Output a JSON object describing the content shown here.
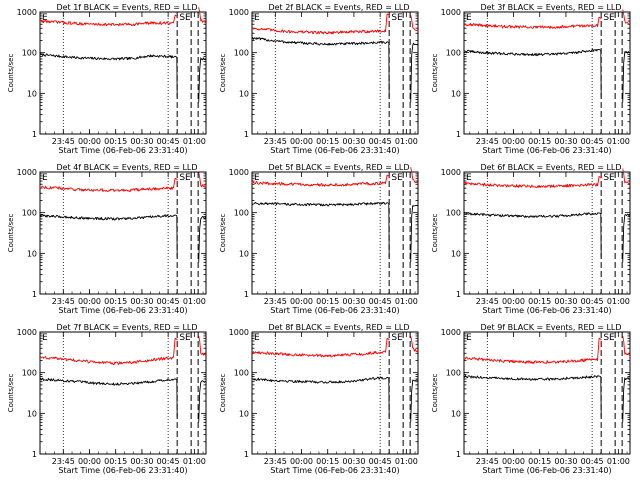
{
  "figure": {
    "x_axis_title": "Start Time (06-Feb-06 23:31:40)",
    "y_axis_title": "Counts/sec",
    "x_tick_labels": [
      "23:45",
      "00:00",
      "00:15",
      "00:30",
      "00:45",
      "01:00"
    ],
    "y_tick_labels": [
      "1",
      "10",
      "100",
      "1000"
    ],
    "marker_left": "E",
    "marker_right": "SE",
    "colors": {
      "events": "#000000",
      "lld": "#ff0000",
      "axes": "#000000"
    }
  },
  "chart_data": [
    {
      "type": "line",
      "title": "Det 1f BLACK = Events, RED = LLD",
      "xlabel": "Start Time (06-Feb-06 23:31:40)",
      "ylabel": "Counts/sec",
      "xlim_minutes_after_start": [
        0,
        95
      ],
      "ylim": [
        1,
        1000
      ],
      "yscale": "log",
      "series": [
        {
          "name": "Events",
          "color": "#000000",
          "level_profile": [
            90,
            82,
            75,
            72,
            70,
            72,
            84,
            80,
            72,
            75
          ]
        },
        {
          "name": "LLD",
          "color": "#ff0000",
          "level_profile": [
            600,
            560,
            520,
            500,
            490,
            500,
            540,
            530,
            500,
            520
          ]
        }
      ]
    },
    {
      "type": "line",
      "title": "Det 2f BLACK = Events, RED = LLD",
      "xlabel": "Start Time (06-Feb-06 23:31:40)",
      "ylabel": "Counts/sec",
      "xlim_minutes_after_start": [
        0,
        95
      ],
      "ylim": [
        1,
        1000
      ],
      "yscale": "log",
      "series": [
        {
          "name": "Events",
          "color": "#000000",
          "level_profile": [
            230,
            200,
            180,
            170,
            160,
            165,
            170,
            180,
            170,
            180
          ]
        },
        {
          "name": "LLD",
          "color": "#ff0000",
          "level_profile": [
            400,
            360,
            330,
            320,
            310,
            320,
            330,
            340,
            320,
            330
          ]
        }
      ]
    },
    {
      "type": "line",
      "title": "Det 3f BLACK = Events, RED = LLD",
      "xlabel": "Start Time (06-Feb-06 23:31:40)",
      "ylabel": "Counts/sec",
      "xlim_minutes_after_start": [
        0,
        95
      ],
      "ylim": [
        1,
        1000
      ],
      "yscale": "log",
      "series": [
        {
          "name": "Events",
          "color": "#000000",
          "level_profile": [
            110,
            100,
            95,
            92,
            90,
            92,
            100,
            115,
            110,
            115
          ]
        },
        {
          "name": "LLD",
          "color": "#ff0000",
          "level_profile": [
            500,
            470,
            440,
            430,
            420,
            430,
            450,
            470,
            450,
            480
          ]
        }
      ]
    },
    {
      "type": "line",
      "title": "Det 4f BLACK = Events, RED = LLD",
      "xlabel": "Start Time (06-Feb-06 23:31:40)",
      "ylabel": "Counts/sec",
      "xlim_minutes_after_start": [
        0,
        95
      ],
      "ylim": [
        1,
        1000
      ],
      "yscale": "log",
      "series": [
        {
          "name": "Events",
          "color": "#000000",
          "level_profile": [
            85,
            80,
            75,
            72,
            70,
            72,
            78,
            85,
            80,
            95
          ]
        },
        {
          "name": "LLD",
          "color": "#ff0000",
          "level_profile": [
            430,
            400,
            370,
            360,
            350,
            360,
            380,
            400,
            380,
            420
          ]
        }
      ]
    },
    {
      "type": "line",
      "title": "Det 5f BLACK = Events, RED = LLD",
      "xlabel": "Start Time (06-Feb-06 23:31:40)",
      "ylabel": "Counts/sec",
      "xlim_minutes_after_start": [
        0,
        95
      ],
      "ylim": [
        1,
        1000
      ],
      "yscale": "log",
      "series": [
        {
          "name": "Events",
          "color": "#000000",
          "level_profile": [
            170,
            165,
            160,
            158,
            155,
            158,
            165,
            170,
            165,
            175
          ]
        },
        {
          "name": "LLD",
          "color": "#ff0000",
          "level_profile": [
            550,
            520,
            500,
            490,
            480,
            490,
            510,
            530,
            510,
            540
          ]
        }
      ]
    },
    {
      "type": "line",
      "title": "Det 6f BLACK = Events, RED = LLD",
      "xlabel": "Start Time (06-Feb-06 23:31:40)",
      "ylabel": "Counts/sec",
      "xlim_minutes_after_start": [
        0,
        95
      ],
      "ylim": [
        1,
        1000
      ],
      "yscale": "log",
      "series": [
        {
          "name": "Events",
          "color": "#000000",
          "level_profile": [
            95,
            90,
            85,
            82,
            80,
            82,
            88,
            95,
            90,
            100
          ]
        },
        {
          "name": "LLD",
          "color": "#ff0000",
          "level_profile": [
            520,
            490,
            460,
            450,
            440,
            450,
            470,
            490,
            470,
            500
          ]
        }
      ]
    },
    {
      "type": "line",
      "title": "Det 7f BLACK = Events, RED = LLD",
      "xlabel": "Start Time (06-Feb-06 23:31:40)",
      "ylabel": "Counts/sec",
      "xlim_minutes_after_start": [
        0,
        95
      ],
      "ylim": [
        1,
        1000
      ],
      "yscale": "log",
      "series": [
        {
          "name": "Events",
          "color": "#000000",
          "level_profile": [
            70,
            65,
            60,
            55,
            52,
            55,
            60,
            68,
            65,
            70
          ]
        },
        {
          "name": "LLD",
          "color": "#ff0000",
          "level_profile": [
            240,
            220,
            200,
            180,
            170,
            180,
            200,
            230,
            220,
            240
          ]
        }
      ]
    },
    {
      "type": "line",
      "title": "Det 8f BLACK = Events, RED = LLD",
      "xlabel": "Start Time (06-Feb-06 23:31:40)",
      "ylabel": "Counts/sec",
      "xlim_minutes_after_start": [
        0,
        95
      ],
      "ylim": [
        1,
        1000
      ],
      "yscale": "log",
      "series": [
        {
          "name": "Events",
          "color": "#000000",
          "level_profile": [
            70,
            65,
            62,
            60,
            58,
            60,
            66,
            75,
            68,
            70
          ]
        },
        {
          "name": "LLD",
          "color": "#ff0000",
          "level_profile": [
            320,
            300,
            280,
            270,
            260,
            270,
            290,
            320,
            300,
            310
          ]
        }
      ]
    },
    {
      "type": "line",
      "title": "Det 9f BLACK = Events, RED = LLD",
      "xlabel": "Start Time (06-Feb-06 23:31:40)",
      "ylabel": "Counts/sec",
      "xlim_minutes_after_start": [
        0,
        95
      ],
      "ylim": [
        1,
        1000
      ],
      "yscale": "log",
      "series": [
        {
          "name": "Events",
          "color": "#000000",
          "level_profile": [
            80,
            76,
            72,
            70,
            68,
            70,
            74,
            80,
            76,
            80
          ]
        },
        {
          "name": "LLD",
          "color": "#ff0000",
          "level_profile": [
            230,
            210,
            195,
            185,
            180,
            185,
            195,
            210,
            200,
            215
          ]
        }
      ]
    }
  ]
}
